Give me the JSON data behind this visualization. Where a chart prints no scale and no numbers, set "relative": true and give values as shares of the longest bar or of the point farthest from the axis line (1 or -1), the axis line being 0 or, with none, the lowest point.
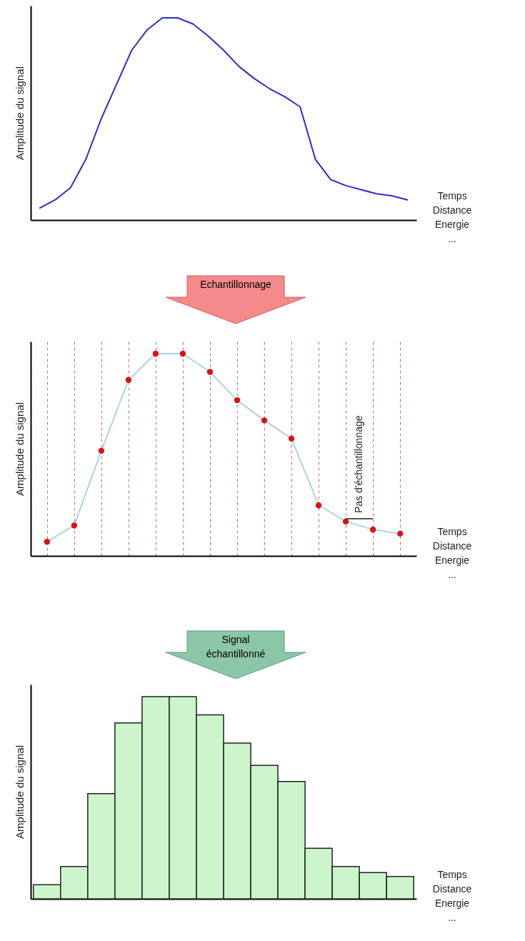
{
  "chart_data": [
    {
      "type": "line",
      "ylabel": "Amplitude du signal",
      "xlabel": "Temps\nDistance\nEnergie\n\n...",
      "relative": true,
      "color": "#2c2cd0",
      "line_style": "solid",
      "categories": [
        null,
        null,
        null,
        null,
        null,
        null,
        null,
        null,
        null,
        null,
        null,
        null,
        null,
        null,
        null,
        null,
        null,
        null,
        null,
        null,
        null,
        null,
        null,
        null,
        null
      ],
      "values": [
        0.06,
        0.1,
        0.16,
        0.3,
        0.5,
        0.67,
        0.84,
        0.94,
        1.0,
        1.0,
        0.97,
        0.91,
        0.84,
        0.76,
        0.7,
        0.65,
        0.61,
        0.56,
        0.3,
        0.2,
        0.17,
        0.15,
        0.13,
        0.12,
        0.1
      ]
    },
    {
      "type": "line",
      "title": "Echantillonnage",
      "ylabel": "Amplitude du signal",
      "xlabel": "Temps\nDistance\nEnergie\n\n\n...",
      "relative": true,
      "grid": "x",
      "marker": "circle",
      "annotations": [
        "Pas d'échantillonnage"
      ],
      "categories": [
        null,
        null,
        null,
        null,
        null,
        null,
        null,
        null,
        null,
        null,
        null,
        null,
        null,
        null
      ],
      "color": "#a8d4ec",
      "values": [
        0.07,
        0.15,
        0.52,
        0.87,
        1.0,
        1.0,
        0.91,
        0.77,
        0.67,
        0.58,
        0.25,
        0.17,
        0.13,
        0.11
      ]
    },
    {
      "type": "bar",
      "title": "Signal\néchantillonné",
      "ylabel": "Amplitude du signal",
      "xlabel": "Temps\nDistance\nEnergie\n...",
      "relative": true,
      "color": "#ccf5cc",
      "categories": [
        null,
        null,
        null,
        null,
        null,
        null,
        null,
        null,
        null,
        null,
        null,
        null,
        null,
        null
      ],
      "values": [
        0.07,
        0.16,
        0.52,
        0.87,
        1.0,
        1.0,
        0.91,
        0.77,
        0.66,
        0.58,
        0.25,
        0.16,
        0.13,
        0.11
      ]
    }
  ]
}
